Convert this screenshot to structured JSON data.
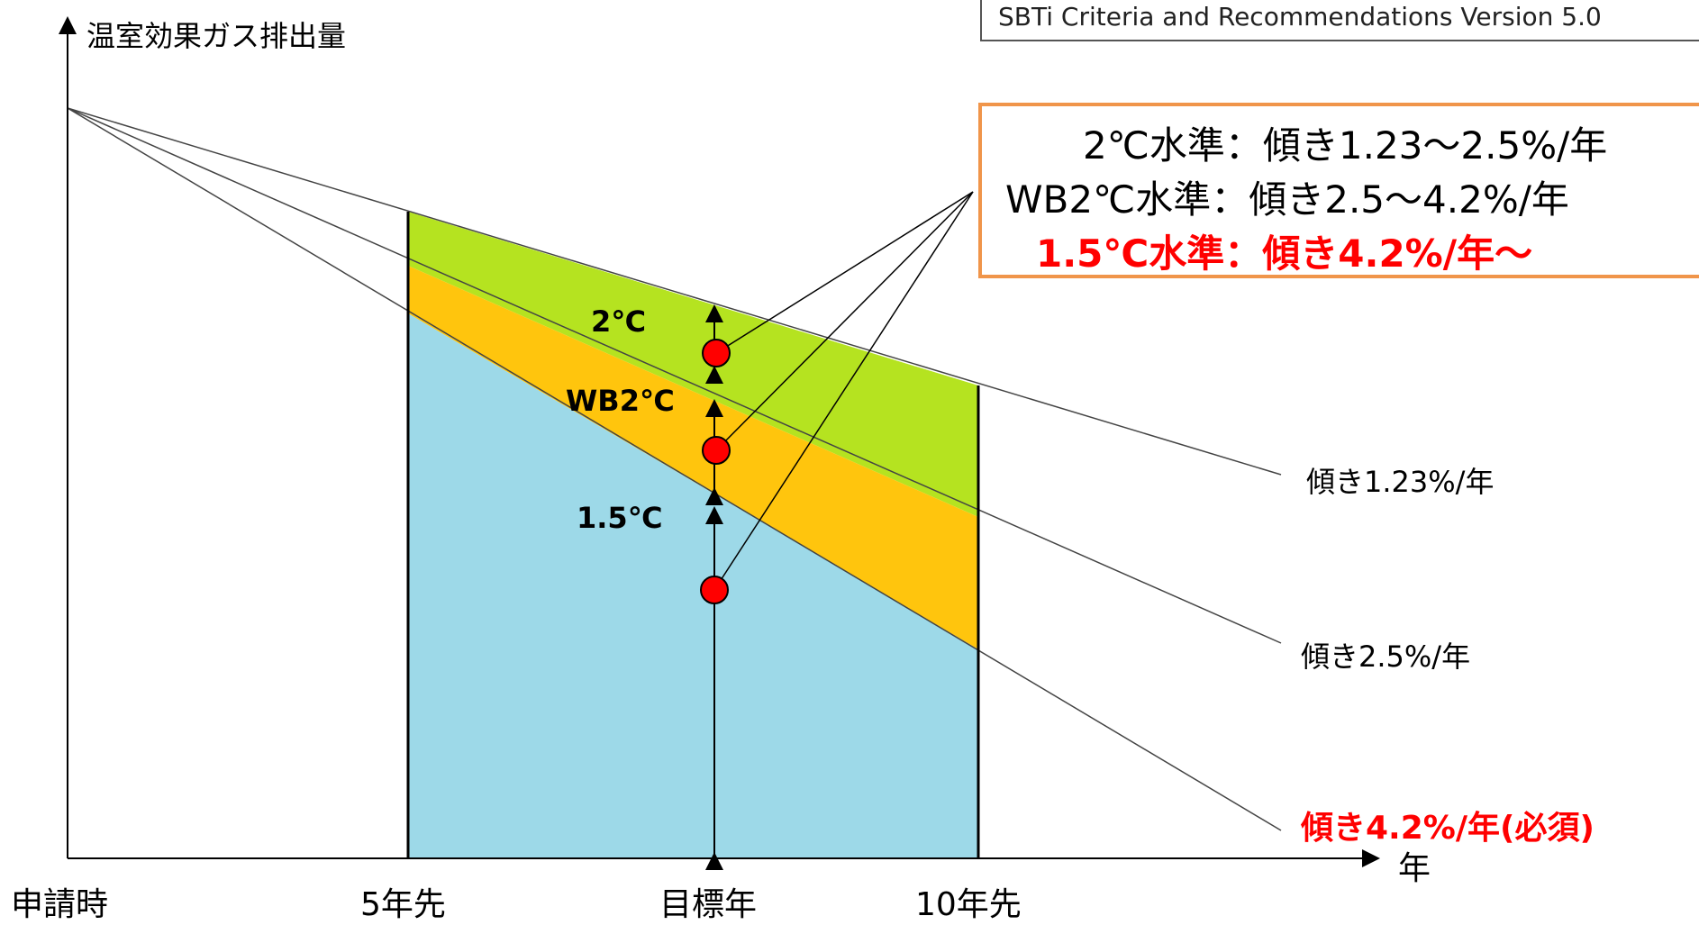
{
  "axes": {
    "y_label": "温室効果ガス排出量",
    "x_unit": "年",
    "x_ticks": [
      "申請時",
      "5年先",
      "目標年",
      "10年先"
    ]
  },
  "source_note": "SBTi Criteria and Recommendations Version 5.0",
  "legend": {
    "lines": [
      "2℃水準：傾き1.23～2.5%/年",
      "WB2℃水準：傾き2.5～4.2%/年",
      "1.5℃水準：傾き4.2%/年～"
    ]
  },
  "bands": [
    "2℃",
    "WB2℃",
    "1.5℃"
  ],
  "slope_labels": [
    "傾き1.23%/年",
    "傾き2.5%/年",
    "傾き4.2%/年(必須)"
  ],
  "colors": {
    "band_2c": "#b5e320",
    "band_wb2c": "#ffc50d",
    "band_15c": "#9dd9e8",
    "legend_border": "#f0954a",
    "highlight": "#ff0000"
  }
}
